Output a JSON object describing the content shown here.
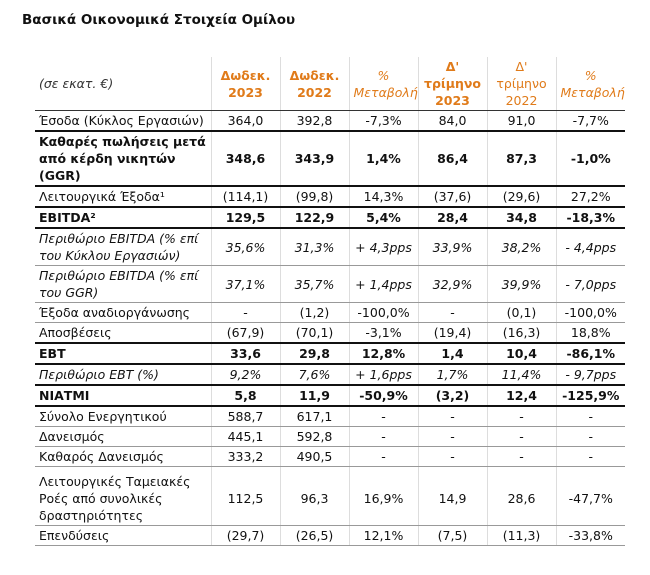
{
  "title": "Βασικά Οικονομικά Στοιχεία Ομίλου",
  "table": {
    "header": [
      "(σε εκατ. €)",
      "Δωδεκ. 2023",
      "Δωδεκ. 2022",
      "% Μεταβολή",
      "Δ' τρίμηνο 2023",
      "Δ' τρίμηνο 2022",
      "% Μεταβολή"
    ],
    "rows": [
      [
        "Έσοδα (Κύκλος Εργασιών)",
        "364,0",
        "392,8",
        "-7,3%",
        "84,0",
        "91,0",
        "-7,7%"
      ],
      [
        "Καθαρές πωλήσεις μετά από κέρδη νικητών (GGR)",
        "348,6",
        "343,9",
        "1,4%",
        "86,4",
        "87,3",
        "-1,0%"
      ],
      [
        "Λειτουργικά Έξοδα¹",
        "(114,1)",
        "(99,8)",
        "14,3%",
        "(37,6)",
        "(29,6)",
        "27,2%"
      ],
      [
        "EBITDA²",
        "129,5",
        "122,9",
        "5,4%",
        "28,4",
        "34,8",
        "-18,3%"
      ],
      [
        "Περιθώριο EBITDA (% επί του Κύκλου Εργασιών)",
        "35,6%",
        "31,3%",
        "+ 4,3pps",
        "33,9%",
        "38,2%",
        "- 4,4pps"
      ],
      [
        "Περιθώριο EBITDA (% επί του GGR)",
        "37,1%",
        "35,7%",
        "+ 1,4pps",
        "32,9%",
        "39,9%",
        "- 7,0pps"
      ],
      [
        "Έξοδα αναδιοργάνωσης",
        "-",
        "(1,2)",
        "-100,0%",
        "-",
        "(0,1)",
        "-100,0%"
      ],
      [
        "Αποσβέσεις",
        "(67,9)",
        "(70,1)",
        "-3,1%",
        "(19,4)",
        "(16,3)",
        "18,8%"
      ],
      [
        "EBT",
        "33,6",
        "29,8",
        "12,8%",
        "1,4",
        "10,4",
        "-86,1%"
      ],
      [
        "Περιθώριο EBT (%)",
        "9,2%",
        "7,6%",
        "+ 1,6pps",
        "1,7%",
        "11,4%",
        "- 9,7pps"
      ],
      [
        "ΝΙΑΤΜΙ",
        "5,8",
        "11,9",
        "-50,9%",
        "(3,2)",
        "12,4",
        "-125,9%"
      ],
      [
        "Σύνολο Ενεργητικού",
        "588,7",
        "617,1",
        "-",
        "-",
        "-",
        "-"
      ],
      [
        "Δανεισμός",
        "445,1",
        "592,8",
        "-",
        "-",
        "-",
        "-"
      ],
      [
        "Καθαρός Δανεισμός",
        "333,2",
        "490,5",
        "-",
        "-",
        "-",
        "-"
      ],
      [
        "Λειτουργικές Ταμειακές Ροές από συνολικές δραστηριότητες",
        "112,5",
        "96,3",
        "16,9%",
        "14,9",
        "28,6",
        "-47,7%"
      ],
      [
        "Επενδύσεις",
        "(29,7)",
        "(26,5)",
        "12,1%",
        "(7,5)",
        "(11,3)",
        "-33,8%"
      ]
    ]
  }
}
